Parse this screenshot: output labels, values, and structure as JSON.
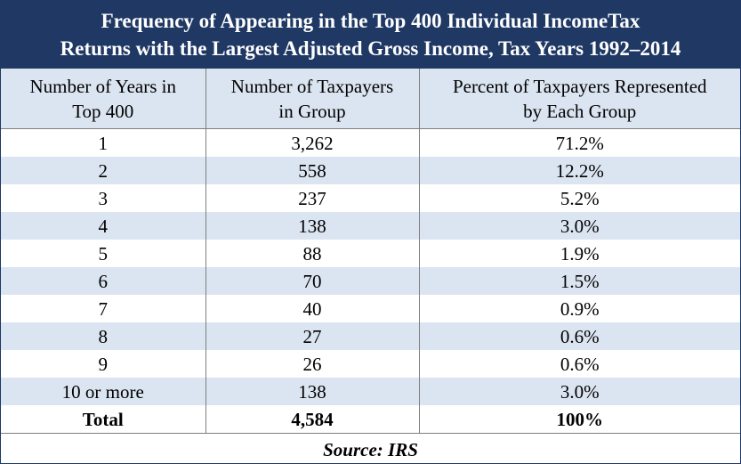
{
  "title": {
    "line1": "Frequency of Appearing in the Top 400 Individual IncomeTax",
    "line2": "Returns with the Largest Adjusted Gross Income, Tax Years 1992–2014"
  },
  "table": {
    "headers": [
      [
        "Number of Years in",
        "Top 400"
      ],
      [
        "Number of Taxpayers",
        "in Group"
      ],
      [
        "Percent of Taxpayers Represented",
        "by Each Group"
      ]
    ],
    "rows": [
      [
        "1",
        "3,262",
        "71.2%"
      ],
      [
        "2",
        "558",
        "12.2%"
      ],
      [
        "3",
        "237",
        "5.2%"
      ],
      [
        "4",
        "138",
        "3.0%"
      ],
      [
        "5",
        "88",
        "1.9%"
      ],
      [
        "6",
        "70",
        "1.5%"
      ],
      [
        "7",
        "40",
        "0.9%"
      ],
      [
        "8",
        "27",
        "0.6%"
      ],
      [
        "9",
        "26",
        "0.6%"
      ],
      [
        "10 or more",
        "138",
        "3.0%"
      ]
    ],
    "total": [
      "Total",
      "4,584",
      "100%"
    ]
  },
  "source": "Source: IRS",
  "colors": {
    "title_background": "#1f3864",
    "title_text": "#ffffff",
    "header_background": "#dbe5f1",
    "stripe_background": "#dbe5f1",
    "grid_lines": "#7f7f7f"
  }
}
